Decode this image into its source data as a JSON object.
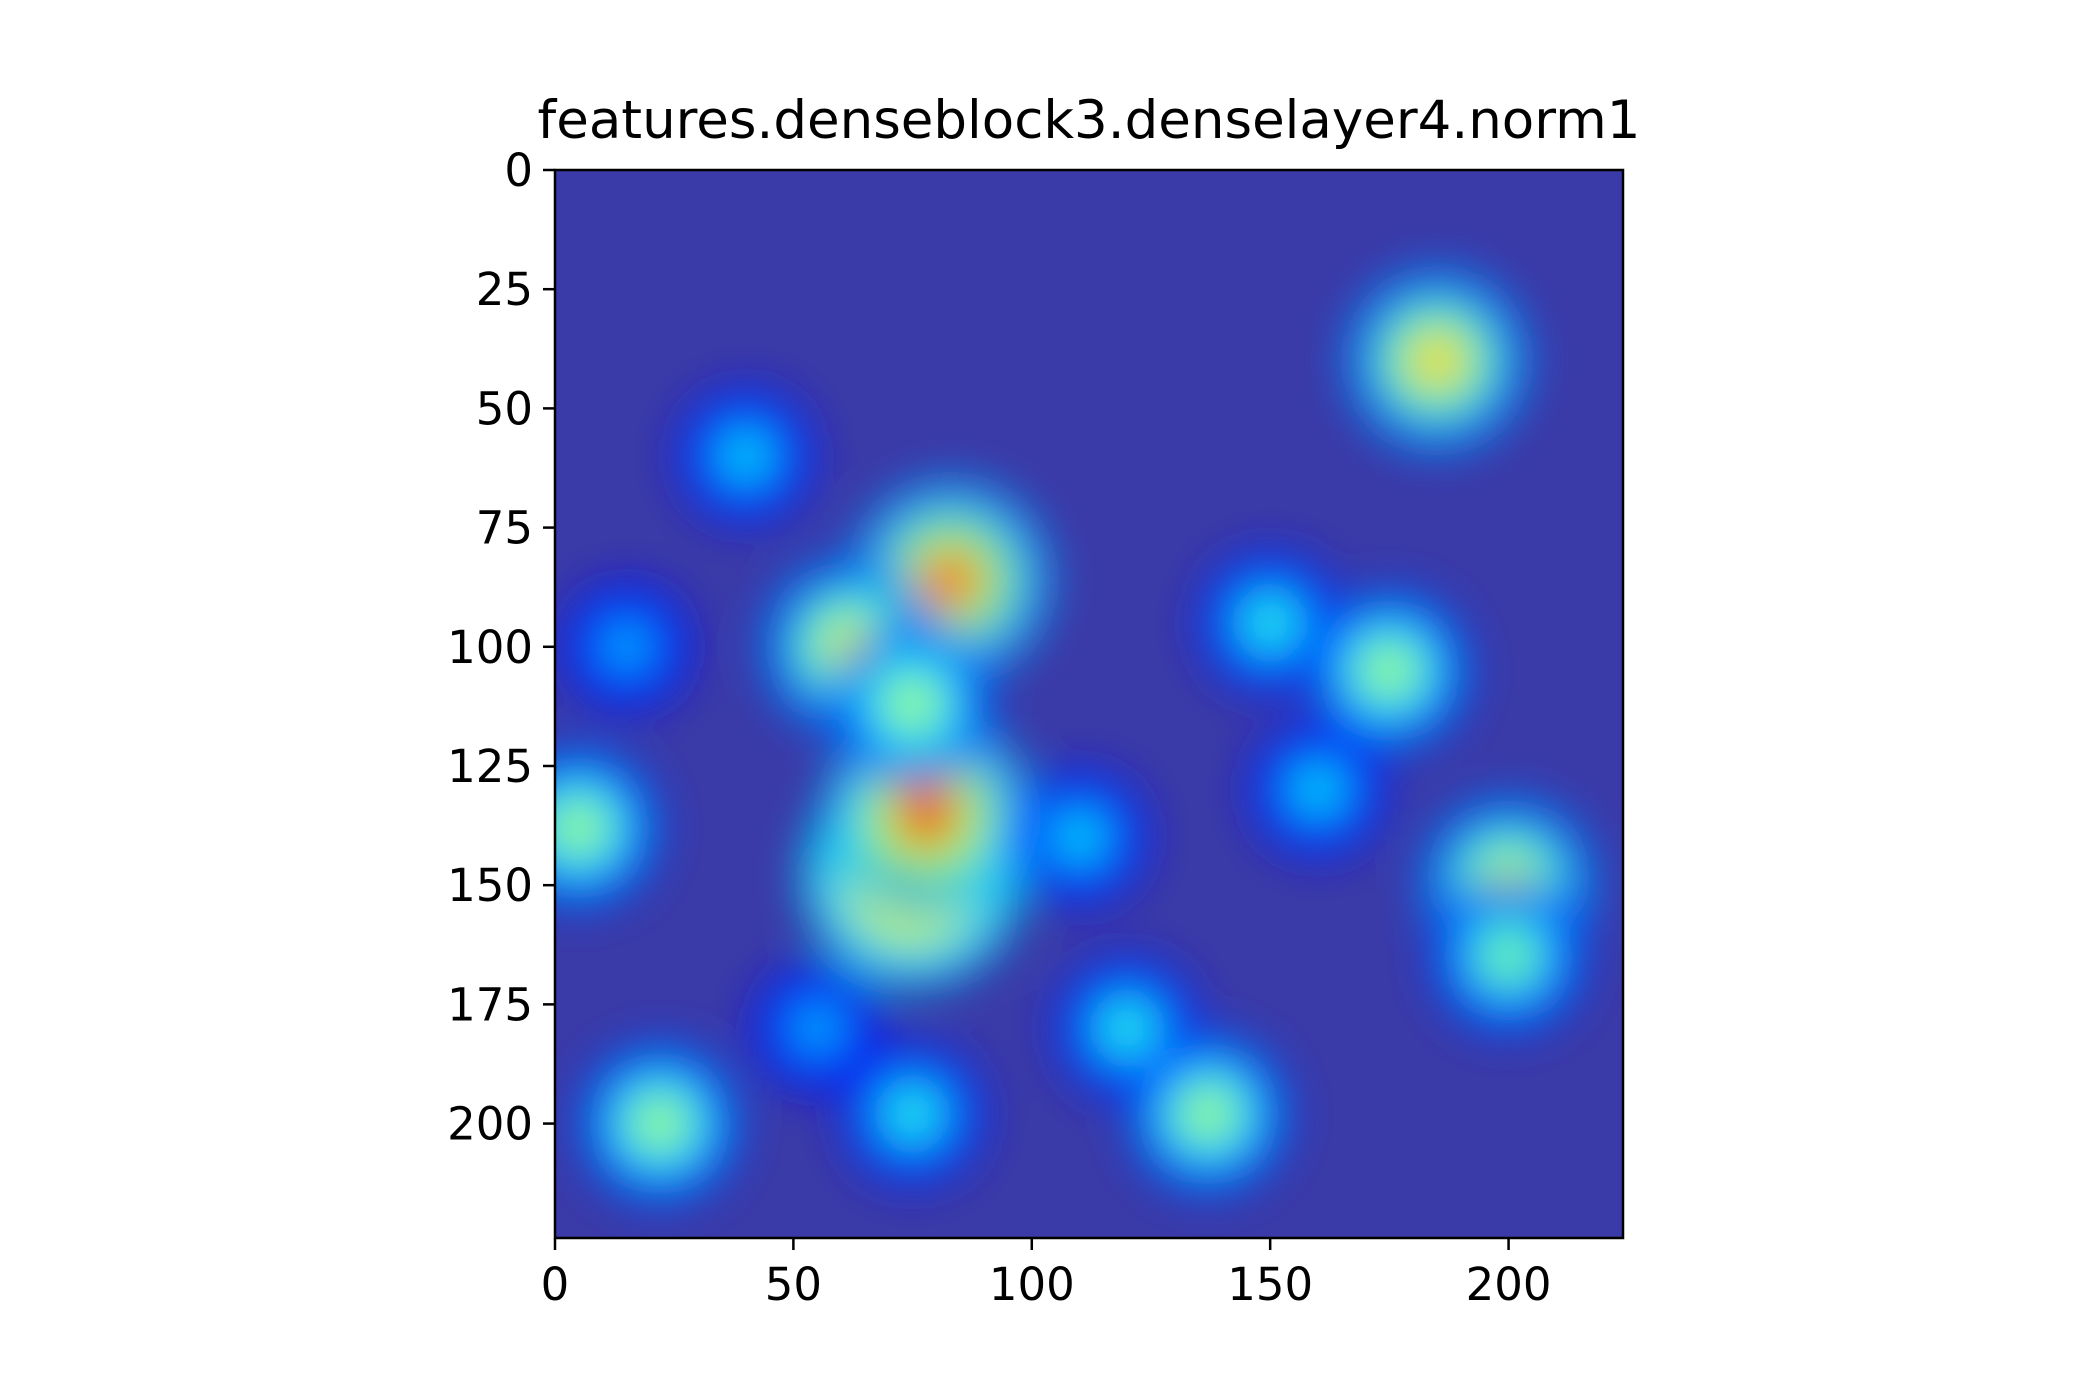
{
  "chart_data": {
    "type": "heatmap",
    "title": "features.denseblock3.denselayer4.norm1",
    "xlabel": "",
    "ylabel": "",
    "xlim": [
      0,
      224
    ],
    "ylim": [
      224,
      0
    ],
    "x_ticks": [
      0,
      50,
      100,
      150,
      200
    ],
    "y_ticks": [
      0,
      25,
      50,
      75,
      100,
      125,
      150,
      175,
      200
    ],
    "x_tick_labels": [
      "0",
      "50",
      "100",
      "150",
      "200"
    ],
    "y_tick_labels": [
      "0",
      "25",
      "50",
      "75",
      "100",
      "125",
      "150",
      "175",
      "200"
    ],
    "grid": false,
    "colormap": "jet",
    "background_color": "#3a3aa8",
    "hotspots": [
      {
        "x": 75,
        "y": 148,
        "intensity": 1.0
      },
      {
        "x": 78,
        "y": 135,
        "intensity": 0.9
      },
      {
        "x": 83,
        "y": 86,
        "intensity": 0.85
      },
      {
        "x": 62,
        "y": 100,
        "intensity": 0.7
      },
      {
        "x": 75,
        "y": 112,
        "intensity": 0.6
      },
      {
        "x": 185,
        "y": 40,
        "intensity": 0.75
      },
      {
        "x": 175,
        "y": 105,
        "intensity": 0.6
      },
      {
        "x": 200,
        "y": 150,
        "intensity": 0.7
      },
      {
        "x": 200,
        "y": 165,
        "intensity": 0.55
      },
      {
        "x": 5,
        "y": 138,
        "intensity": 0.6
      },
      {
        "x": 22,
        "y": 200,
        "intensity": 0.6
      },
      {
        "x": 137,
        "y": 198,
        "intensity": 0.6
      },
      {
        "x": 120,
        "y": 180,
        "intensity": 0.45
      },
      {
        "x": 110,
        "y": 140,
        "intensity": 0.4
      },
      {
        "x": 150,
        "y": 95,
        "intensity": 0.45
      },
      {
        "x": 160,
        "y": 130,
        "intensity": 0.4
      },
      {
        "x": 40,
        "y": 60,
        "intensity": 0.4
      },
      {
        "x": 15,
        "y": 100,
        "intensity": 0.35
      },
      {
        "x": 55,
        "y": 180,
        "intensity": 0.35
      },
      {
        "x": 75,
        "y": 198,
        "intensity": 0.45
      }
    ]
  }
}
